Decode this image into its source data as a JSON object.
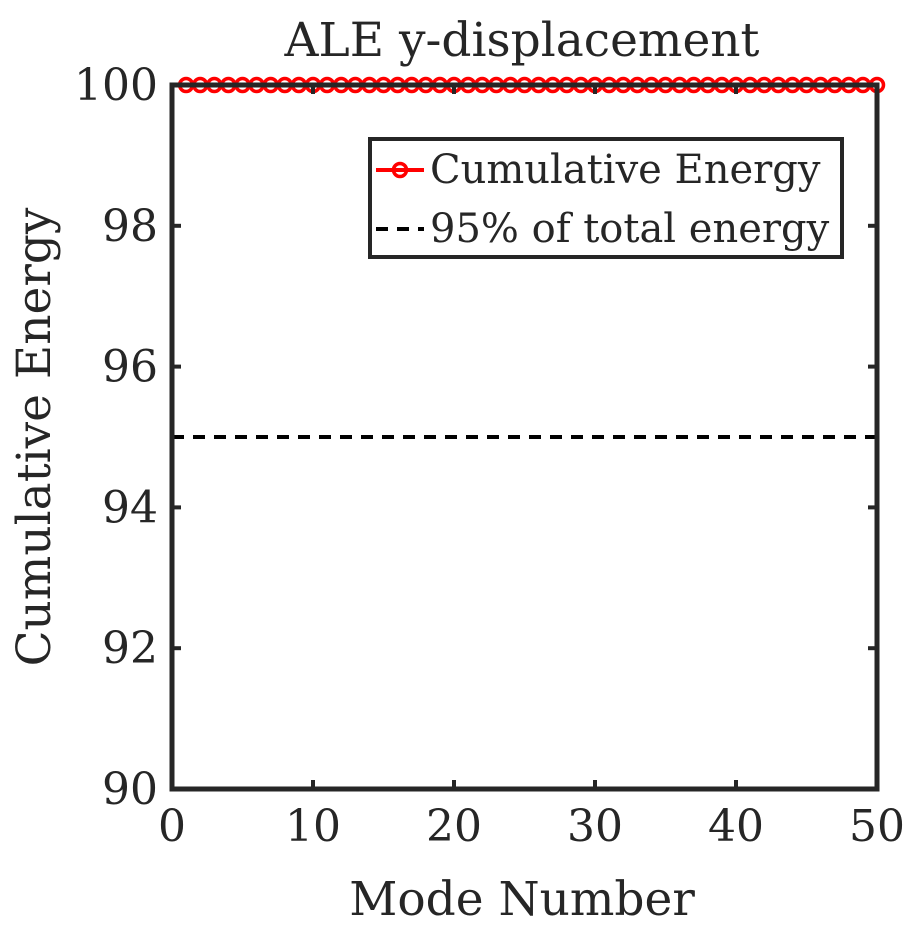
{
  "chart_data": {
    "type": "line",
    "title": "ALE y-displacement",
    "xlabel": "Mode Number",
    "ylabel": "Cumulative Energy",
    "xlim": [
      0,
      50
    ],
    "ylim": [
      90,
      100
    ],
    "xticks": [
      "0",
      "10",
      "20",
      "30",
      "40",
      "50"
    ],
    "yticks": [
      "90",
      "92",
      "94",
      "96",
      "98",
      "100"
    ],
    "grid": false,
    "legend_position": "top-right",
    "series": [
      {
        "name": "Cumulative Energy",
        "style": "line-circle-markers",
        "color": "#ff0000",
        "x": [
          1,
          2,
          3,
          4,
          5,
          6,
          7,
          8,
          9,
          10,
          11,
          12,
          13,
          14,
          15,
          16,
          17,
          18,
          19,
          20,
          21,
          22,
          23,
          24,
          25,
          26,
          27,
          28,
          29,
          30,
          31,
          32,
          33,
          34,
          35,
          36,
          37,
          38,
          39,
          40,
          41,
          42,
          43,
          44,
          45,
          46,
          47,
          48,
          49,
          50
        ],
        "values": [
          100,
          100,
          100,
          100,
          100,
          100,
          100,
          100,
          100,
          100,
          100,
          100,
          100,
          100,
          100,
          100,
          100,
          100,
          100,
          100,
          100,
          100,
          100,
          100,
          100,
          100,
          100,
          100,
          100,
          100,
          100,
          100,
          100,
          100,
          100,
          100,
          100,
          100,
          100,
          100,
          100,
          100,
          100,
          100,
          100,
          100,
          100,
          100,
          100,
          100
        ]
      },
      {
        "name": "95% of total energy",
        "style": "dashed",
        "color": "#000000",
        "x": [
          0,
          50
        ],
        "values": [
          95,
          95
        ]
      }
    ],
    "legend": [
      {
        "label": "Cumulative Energy",
        "series": 0
      },
      {
        "label": "95% of total energy",
        "series": 1
      }
    ]
  }
}
